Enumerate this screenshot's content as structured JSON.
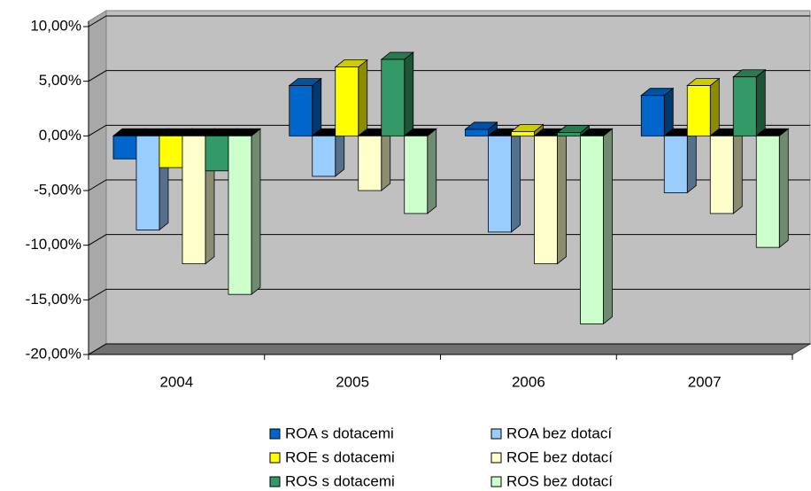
{
  "chart_data": {
    "type": "bar3d",
    "categories": [
      "2004",
      "2005",
      "2006",
      "2007"
    ],
    "series": [
      {
        "name": "ROA s dotacemi",
        "color": "#0066cc",
        "values": [
          -2.1,
          4.6,
          0.6,
          3.7
        ]
      },
      {
        "name": "ROA bez dotací",
        "color": "#99ccff",
        "values": [
          -8.6,
          -3.7,
          -8.8,
          -5.2
        ]
      },
      {
        "name": "ROE s dotacemi",
        "color": "#ffff00",
        "values": [
          -2.9,
          6.3,
          0.4,
          4.6
        ]
      },
      {
        "name": "ROE bez dotací",
        "color": "#ffffcc",
        "values": [
          -11.7,
          -5.0,
          -11.7,
          -7.1
        ]
      },
      {
        "name": "ROS s dotacemi",
        "color": "#339966",
        "values": [
          -3.2,
          7.0,
          0.3,
          5.4
        ]
      },
      {
        "name": "ROS bez dotací",
        "color": "#ccffcc",
        "values": [
          -14.5,
          -7.1,
          -17.2,
          -10.2
        ]
      }
    ],
    "ylim": [
      -20,
      10
    ],
    "yticks": [
      {
        "value": -20,
        "label": "-20,00%"
      },
      {
        "value": -15,
        "label": "-15,00%"
      },
      {
        "value": -10,
        "label": "-10,00%"
      },
      {
        "value": -5,
        "label": "-5,00%"
      },
      {
        "value": 0,
        "label": "0,00%"
      },
      {
        "value": 5,
        "label": "5,00%"
      },
      {
        "value": 10,
        "label": "10,00%"
      }
    ],
    "grid": true
  }
}
